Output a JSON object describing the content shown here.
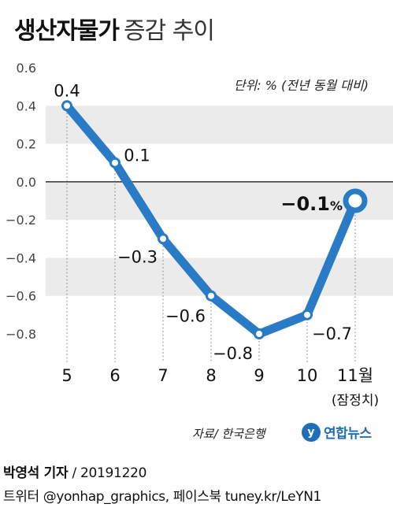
{
  "title": {
    "bold": "생산자물가",
    "light": "증감 추이"
  },
  "chart_data": {
    "type": "line",
    "categories": [
      "5",
      "6",
      "7",
      "8",
      "9",
      "10",
      "11월"
    ],
    "category_sublabels": [
      "",
      "",
      "",
      "",
      "",
      "",
      "(잠정치)"
    ],
    "values": [
      0.4,
      0.1,
      -0.3,
      -0.6,
      -0.8,
      -0.7,
      -0.1
    ],
    "data_labels": [
      "0.4",
      "0.1",
      "−0.3",
      "−0.6",
      "−0.8",
      "−0.7",
      "−0.1"
    ],
    "highlight_unit": "%",
    "ylim": [
      -0.8,
      0.6
    ],
    "yticks": [
      "0.6",
      "0.4",
      "0.2",
      "0.0",
      "−0.2",
      "−0.4",
      "−0.6",
      "−0.8"
    ],
    "unit_note": "단위: % (전년 동월 대비)",
    "line_color": "#2a7bc6",
    "band_color": "#ebebeb"
  },
  "source": "자료/ 한국은행",
  "logo": {
    "mark": "y",
    "text": "연합뉴스"
  },
  "byline": {
    "name": "박영석 기자",
    "sep": "/",
    "date": "20191220"
  },
  "social": "트위터 @yonhap_graphics, 페이스북 tuney.kr/LeYN1"
}
